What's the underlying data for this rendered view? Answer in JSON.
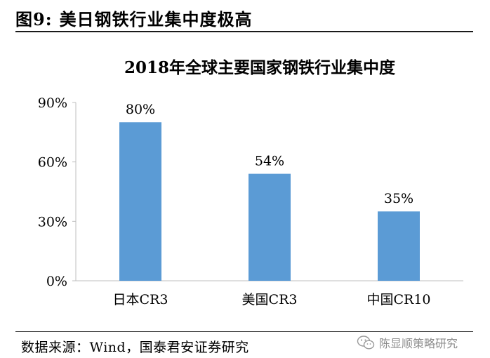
{
  "figure": {
    "number_label": "图9:",
    "caption": "美日钢铁行业集中度极高",
    "source": "数据来源：Wind，国泰君安证券研究",
    "watermark": {
      "text": "陈显顺策略研究",
      "icon": "wechat-icon"
    }
  },
  "colors": {
    "bar": "#5b9bd5",
    "axis": "#bfbfbf",
    "text": "#000000"
  },
  "chart_data": {
    "type": "bar",
    "title": "2018年全球主要国家钢铁行业集中度",
    "categories": [
      "日本CR3",
      "美国CR3",
      "中国CR10"
    ],
    "values": [
      80,
      54,
      35
    ],
    "value_labels": [
      "80%",
      "54%",
      "35%"
    ],
    "ylim": [
      0,
      90
    ],
    "yticks": [
      0,
      30,
      60,
      90
    ],
    "ytick_labels": [
      "0%",
      "30%",
      "60%",
      "90%"
    ],
    "xlabel": "",
    "ylabel": "",
    "grid": false,
    "legend": "none"
  }
}
